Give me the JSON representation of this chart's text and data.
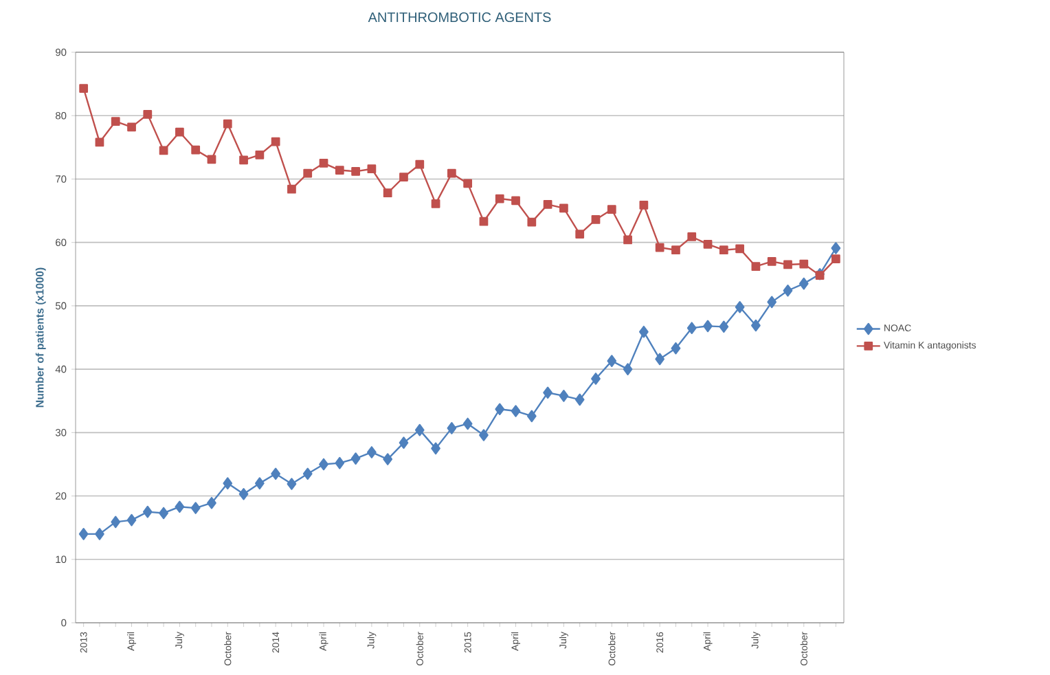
{
  "chart_data": {
    "type": "line",
    "title": "ANTITHROMBOTIC AGENTS",
    "ylabel": "Number of patients (x1000)",
    "categories": [
      "2013",
      null,
      null,
      "April",
      null,
      null,
      "July",
      null,
      null,
      "October",
      null,
      null,
      "2014",
      null,
      null,
      "April",
      null,
      null,
      "July",
      null,
      null,
      "October",
      null,
      null,
      "2015",
      null,
      null,
      "April",
      null,
      null,
      "July",
      null,
      null,
      "October",
      null,
      null,
      "2016",
      null,
      null,
      "April",
      null,
      null,
      "July",
      null,
      null,
      "October",
      null,
      null
    ],
    "series": [
      {
        "name": "NOAC",
        "color": "#4f81bd",
        "marker": "diamond",
        "values": [
          14.0,
          14.0,
          15.9,
          16.2,
          17.5,
          17.3,
          18.3,
          18.1,
          18.9,
          22.0,
          20.3,
          22.0,
          23.5,
          21.9,
          23.5,
          25.0,
          25.2,
          25.9,
          26.9,
          25.8,
          28.4,
          30.4,
          27.5,
          30.7,
          31.4,
          29.6,
          33.7,
          33.4,
          32.6,
          36.3,
          35.8,
          35.2,
          38.5,
          41.3,
          40.0,
          45.9,
          41.6,
          43.3,
          46.5,
          46.8,
          46.7,
          49.8,
          46.9,
          50.6,
          52.4,
          53.5,
          55.0,
          59.1
        ]
      },
      {
        "name": "Vitamin K antagonists",
        "color": "#c0504d",
        "marker": "square",
        "values": [
          84.3,
          75.8,
          79.1,
          78.2,
          80.2,
          74.5,
          77.4,
          74.6,
          73.1,
          78.7,
          73.0,
          73.8,
          75.9,
          68.4,
          70.9,
          72.5,
          71.4,
          71.2,
          71.6,
          67.8,
          70.3,
          72.3,
          66.1,
          70.9,
          69.3,
          63.3,
          66.9,
          66.6,
          63.2,
          66.0,
          65.4,
          61.3,
          63.6,
          65.2,
          60.4,
          65.9,
          59.2,
          58.8,
          60.9,
          59.7,
          58.8,
          59.0,
          56.2,
          57.0,
          56.5,
          56.6,
          54.8,
          57.4
        ]
      }
    ],
    "ylim": [
      0,
      90
    ],
    "yticks": [
      0,
      10,
      20,
      30,
      40,
      50,
      60,
      70,
      80,
      90
    ],
    "grid": "y",
    "legend": "right"
  }
}
